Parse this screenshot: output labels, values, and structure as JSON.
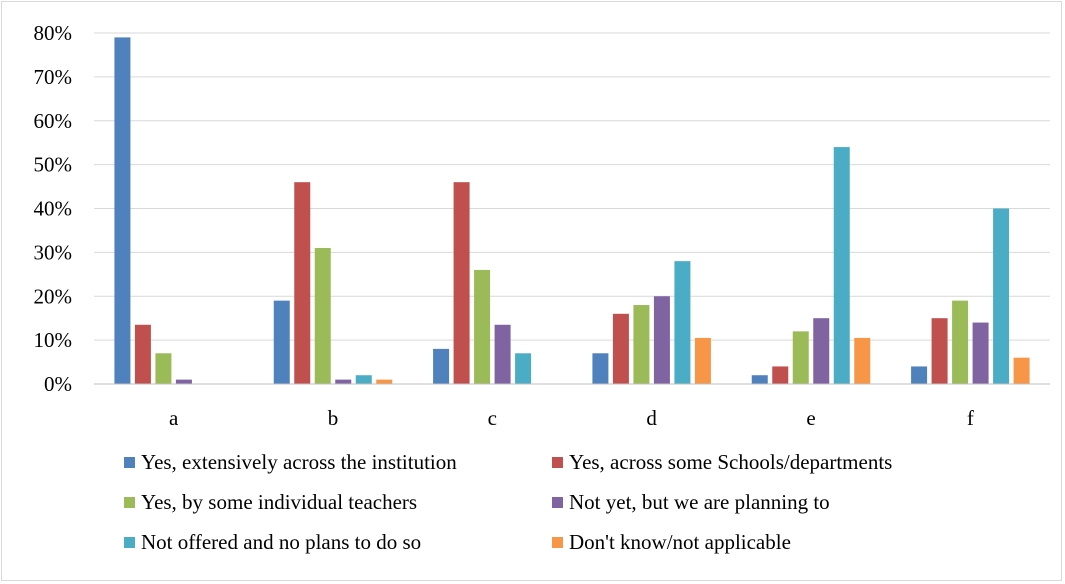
{
  "chart_data": {
    "type": "bar",
    "categories": [
      "a",
      "b",
      "c",
      "d",
      "e",
      "f"
    ],
    "ylim": [
      0,
      80
    ],
    "yticks": [
      "0%",
      "10%",
      "20%",
      "30%",
      "40%",
      "50%",
      "60%",
      "70%",
      "80%"
    ],
    "grid": true,
    "legend_position": "bottom",
    "series": [
      {
        "name": "Yes, extensively across the institution",
        "color": "#4F81BD",
        "values": [
          79,
          19,
          8,
          7,
          2,
          4
        ]
      },
      {
        "name": "Yes, across some Schools/departments",
        "color": "#C0504D",
        "values": [
          13.5,
          46,
          46,
          16,
          4,
          15
        ]
      },
      {
        "name": "Yes, by some individual teachers",
        "color": "#9BBB59",
        "values": [
          7,
          31,
          26,
          18,
          12,
          19
        ]
      },
      {
        "name": "Not yet, but we are planning to",
        "color": "#8064A2",
        "values": [
          1,
          1,
          13.5,
          20,
          15,
          14
        ]
      },
      {
        "name": "Not offered and no plans to do so",
        "color": "#4BACC6",
        "values": [
          0,
          2,
          7,
          28,
          54,
          40
        ]
      },
      {
        "name": "Don't know/not applicable",
        "color": "#F79646",
        "values": [
          0,
          1,
          0,
          10.5,
          10.5,
          6
        ]
      }
    ]
  }
}
